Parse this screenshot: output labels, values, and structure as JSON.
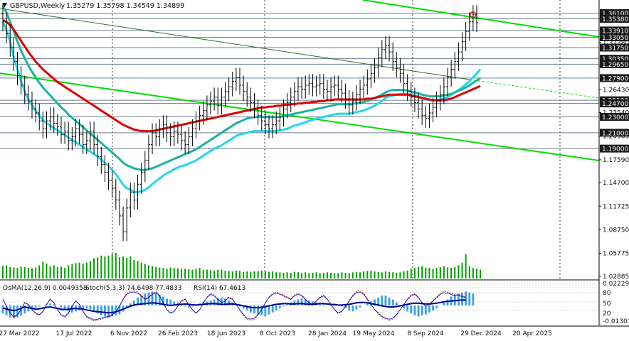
{
  "header": {
    "symbol": "GBPUSD,Weekly",
    "ohlc": "1.35279 1.35798 1.34549 1.34899"
  },
  "indicators_label": {
    "osma": "OsMA(12,26,9) 0.0049358",
    "stoch": "Stoch(5,3,3) 74.6498 77.4833",
    "rsi": "RSI(14) 67.4613"
  },
  "colors": {
    "price_bar": "#000000",
    "ema_red": "#e00000",
    "ema_teal": "#1ab3a0",
    "ema_cyan": "#22d8e8",
    "channel_green": "#00dd00",
    "trend_dark": "#2e6b2e",
    "volume": "#00a000",
    "osma_hist": "#3aa0e0",
    "osc_blue": "#0000cc",
    "osc_red": "#c00000",
    "tag_dark": "#1a1a1a"
  },
  "chart_data": {
    "type": "candlestick",
    "timeframe": "Weekly",
    "ylim": [
      1.026,
      1.374
    ],
    "x_ticks": [
      "27 Mar 2022",
      "17 Jul 2022",
      "6 Nov 2022",
      "26 Feb 2023",
      "18 Jun 2023",
      "8 Oct 2023",
      "28 Jan 2024",
      "19 May 2024",
      "8 Sep 2024",
      "29 Dec 2024",
      "20 Apr 2025"
    ],
    "y_ticks": [
      "1.02885",
      "1.05775",
      "1.08750",
      "1.11725",
      "1.14700",
      "1.17590",
      "1.20565",
      "1.23540",
      "1.26430",
      "1.29405",
      "1.32380",
      "1.35355"
    ],
    "level_tags": [
      "1.36100",
      "1.35380",
      "1.33910",
      "1.33050",
      "1.31750",
      "1.30350",
      "1.29650",
      "1.27900",
      "1.25100",
      "1.24700",
      "1.23000",
      "1.21000",
      "1.19000"
    ],
    "levels": [
      1.361,
      1.3538,
      1.3391,
      1.3305,
      1.3175,
      1.3035,
      1.2965,
      1.279,
      1.251,
      1.247,
      1.23,
      1.21,
      1.19
    ],
    "close": [
      1.35,
      1.335,
      1.318,
      1.3,
      1.282,
      1.27,
      1.258,
      1.25,
      1.24,
      1.235,
      1.225,
      1.215,
      1.225,
      1.23,
      1.222,
      1.218,
      1.208,
      1.212,
      1.2,
      1.205,
      1.215,
      1.208,
      1.195,
      1.2,
      1.212,
      1.195,
      1.18,
      1.17,
      1.16,
      1.15,
      1.14,
      1.125,
      1.105,
      1.085,
      1.115,
      1.135,
      1.125,
      1.145,
      1.16,
      1.175,
      1.195,
      1.21,
      1.205,
      1.215,
      1.22,
      1.21,
      1.205,
      1.212,
      1.208,
      1.2,
      1.195,
      1.205,
      1.215,
      1.225,
      1.232,
      1.238,
      1.245,
      1.25,
      1.255,
      1.245,
      1.255,
      1.262,
      1.268,
      1.275,
      1.28,
      1.27,
      1.262,
      1.255,
      1.248,
      1.24,
      1.232,
      1.225,
      1.22,
      1.215,
      1.22,
      1.225,
      1.23,
      1.24,
      1.248,
      1.255,
      1.262,
      1.268,
      1.265,
      1.27,
      1.272,
      1.268,
      1.27,
      1.272,
      1.265,
      1.262,
      1.268,
      1.27,
      1.265,
      1.26,
      1.252,
      1.245,
      1.25,
      1.258,
      1.265,
      1.27,
      1.278,
      1.285,
      1.292,
      1.305,
      1.315,
      1.32,
      1.312,
      1.3,
      1.292,
      1.285,
      1.272,
      1.262,
      1.255,
      1.248,
      1.24,
      1.232,
      1.228,
      1.235,
      1.242,
      1.25,
      1.258,
      1.268,
      1.28,
      1.29,
      1.3,
      1.312,
      1.325,
      1.338,
      1.35,
      1.359,
      1.349
    ],
    "vol_pct": [
      28,
      30,
      26,
      25,
      24,
      27,
      26,
      24,
      23,
      25,
      30,
      38,
      34,
      28,
      30,
      26,
      27,
      24,
      30,
      33,
      35,
      36,
      34,
      36,
      40,
      46,
      48,
      52,
      50,
      52,
      55,
      58,
      48,
      50,
      47,
      50,
      42,
      40,
      36,
      33,
      30,
      28,
      26,
      25,
      24,
      22,
      25,
      24,
      23,
      22,
      22,
      21,
      20,
      22,
      24,
      20,
      20,
      19,
      18,
      20,
      20,
      18,
      17,
      16,
      18,
      17,
      15,
      16,
      15,
      16,
      17,
      18,
      16,
      15,
      16,
      14,
      14,
      13,
      14,
      13,
      15,
      14,
      13,
      14,
      12,
      13,
      14,
      12,
      13,
      14,
      13,
      12,
      12,
      14,
      13,
      12,
      14,
      15,
      14,
      16,
      17,
      18,
      16,
      15,
      14,
      16,
      15,
      14,
      13,
      14,
      16,
      18,
      22,
      24,
      26,
      28,
      25,
      24,
      22,
      24,
      26,
      28,
      25,
      24,
      26,
      30,
      36,
      55,
      28,
      24,
      22,
      20
    ],
    "series": [
      {
        "values": [
          1.35,
          1.34,
          1.325,
          1.305,
          1.29,
          1.275,
          1.262,
          1.252,
          1.245,
          1.238,
          1.232,
          1.226,
          1.222,
          1.219,
          1.216,
          1.213,
          1.21,
          1.207,
          1.204,
          1.201,
          1.198,
          1.195,
          1.192,
          1.189,
          1.186,
          1.183,
          1.18,
          1.176,
          1.172,
          1.168,
          1.163,
          1.158,
          1.151,
          1.144,
          1.14,
          1.138,
          1.135,
          1.135,
          1.136,
          1.138,
          1.141,
          1.145,
          1.149,
          1.152,
          1.156,
          1.159,
          1.161,
          1.164,
          1.166,
          1.168,
          1.169,
          1.171,
          1.173,
          1.175,
          1.178,
          1.181,
          1.184,
          1.187,
          1.19,
          1.192,
          1.194,
          1.197,
          1.2,
          1.203,
          1.206,
          1.208,
          1.209,
          1.21,
          1.211,
          1.212,
          1.212,
          1.212,
          1.212,
          1.212,
          1.212,
          1.212,
          1.213,
          1.214,
          1.215,
          1.217,
          1.219,
          1.22,
          1.222,
          1.223,
          1.225,
          1.226,
          1.228,
          1.229,
          1.23,
          1.231,
          1.232,
          1.233,
          1.234,
          1.234,
          1.234,
          1.234,
          1.235,
          1.236,
          1.237,
          1.238,
          1.24,
          1.242,
          1.244,
          1.247,
          1.25,
          1.254,
          1.256,
          1.257,
          1.258,
          1.259,
          1.259,
          1.259,
          1.258,
          1.257,
          1.256,
          1.254,
          1.252,
          1.251,
          1.251,
          1.251,
          1.252,
          1.253,
          1.255,
          1.258,
          1.261,
          1.264,
          1.267,
          1.271,
          1.275,
          1.28,
          1.285,
          1.29
        ]
      },
      {
        "values": [
          1.37,
          1.362,
          1.35,
          1.338,
          1.325,
          1.314,
          1.304,
          1.295,
          1.287,
          1.28,
          1.273,
          1.267,
          1.262,
          1.257,
          1.252,
          1.247,
          1.242,
          1.238,
          1.233,
          1.229,
          1.225,
          1.221,
          1.217,
          1.213,
          1.209,
          1.205,
          1.201,
          1.197,
          1.193,
          1.189,
          1.185,
          1.181,
          1.177,
          1.172,
          1.169,
          1.167,
          1.165,
          1.164,
          1.163,
          1.163,
          1.164,
          1.165,
          1.167,
          1.169,
          1.171,
          1.173,
          1.175,
          1.177,
          1.179,
          1.181,
          1.183,
          1.185,
          1.187,
          1.189,
          1.192,
          1.195,
          1.198,
          1.201,
          1.204,
          1.207,
          1.21,
          1.213,
          1.216,
          1.219,
          1.222,
          1.224,
          1.226,
          1.228,
          1.229,
          1.23,
          1.23,
          1.23,
          1.23,
          1.23,
          1.23,
          1.23,
          1.23,
          1.231,
          1.232,
          1.233,
          1.234,
          1.235,
          1.236,
          1.237,
          1.238,
          1.239,
          1.24,
          1.241,
          1.242,
          1.243,
          1.244,
          1.245,
          1.246,
          1.246,
          1.246,
          1.246,
          1.247,
          1.247,
          1.248,
          1.249,
          1.25,
          1.252,
          1.254,
          1.256,
          1.258,
          1.261,
          1.263,
          1.264,
          1.264,
          1.264,
          1.264,
          1.263,
          1.262,
          1.261,
          1.26,
          1.258,
          1.257,
          1.256,
          1.256,
          1.256,
          1.256,
          1.257,
          1.258,
          1.259,
          1.261,
          1.263,
          1.265,
          1.267,
          1.27,
          1.273,
          1.276,
          1.279
        ]
      },
      {
        "values": [
          1.352,
          1.35,
          1.346,
          1.34,
          1.333,
          1.326,
          1.319,
          1.312,
          1.306,
          1.3,
          1.295,
          1.29,
          1.286,
          1.282,
          1.278,
          1.274,
          1.271,
          1.268,
          1.265,
          1.262,
          1.259,
          1.256,
          1.253,
          1.25,
          1.247,
          1.244,
          1.241,
          1.238,
          1.235,
          1.232,
          1.229,
          1.226,
          1.223,
          1.22,
          1.218,
          1.216,
          1.214,
          1.213,
          1.212,
          1.212,
          1.212,
          1.212,
          1.213,
          1.214,
          1.215,
          1.216,
          1.217,
          1.218,
          1.219,
          1.22,
          1.221,
          1.222,
          1.223,
          1.224,
          1.225,
          1.226,
          1.227,
          1.228,
          1.229,
          1.23,
          1.231,
          1.232,
          1.233,
          1.234,
          1.235,
          1.236,
          1.237,
          1.238,
          1.239,
          1.24,
          1.241,
          1.242,
          1.242,
          1.243,
          1.243,
          1.244,
          1.244,
          1.245,
          1.245,
          1.246,
          1.246,
          1.247,
          1.247,
          1.248,
          1.248,
          1.249,
          1.249,
          1.25,
          1.25,
          1.251,
          1.251,
          1.252,
          1.252,
          1.252,
          1.252,
          1.252,
          1.252,
          1.252,
          1.252,
          1.252,
          1.253,
          1.253,
          1.254,
          1.255,
          1.256,
          1.257,
          1.258,
          1.258,
          1.258,
          1.258,
          1.258,
          1.258,
          1.257,
          1.256,
          1.255,
          1.254,
          1.253,
          1.252,
          1.251,
          1.251,
          1.251,
          1.251,
          1.252,
          1.253,
          1.255,
          1.257,
          1.259,
          1.261,
          1.263,
          1.265,
          1.267,
          1.269
        ]
      }
    ],
    "osma_hist": [
      -0.8,
      -1.0,
      -1.2,
      -1.3,
      -1.2,
      -1.0,
      -0.8,
      -0.6,
      -0.4,
      -0.2,
      -0.1,
      0.0,
      0.1,
      0.2,
      0.1,
      0.0,
      -0.2,
      -0.4,
      -0.6,
      -0.7,
      -0.6,
      -0.5,
      -0.4,
      -0.3,
      -0.4,
      -0.6,
      -0.8,
      -1.0,
      -1.1,
      -1.2,
      -1.1,
      -1.0,
      -0.9,
      -0.6,
      -0.2,
      0.2,
      0.5,
      0.8,
      1.0,
      1.2,
      1.3,
      1.4,
      1.3,
      1.1,
      0.9,
      0.7,
      0.6,
      0.4,
      0.3,
      0.1,
      -0.1,
      -0.2,
      -0.1,
      0.0,
      0.2,
      0.3,
      0.4,
      0.5,
      0.6,
      0.7,
      0.8,
      0.7,
      0.5,
      0.3,
      0.1,
      -0.1,
      -0.3,
      -0.5,
      -0.7,
      -0.8,
      -0.9,
      -1.0,
      -1.1,
      -0.9,
      -0.7,
      -0.5,
      -0.3,
      -0.1,
      0.1,
      0.3,
      0.5,
      0.6,
      0.7,
      0.6,
      0.5,
      0.4,
      0.3,
      0.2,
      0.1,
      0.0,
      0.1,
      0.2,
      0.1,
      -0.1,
      -0.3,
      -0.5,
      -0.6,
      -0.4,
      -0.2,
      0.0,
      0.2,
      0.4,
      0.6,
      0.8,
      1.0,
      1.0,
      0.8,
      0.6,
      0.3,
      0.0,
      -0.3,
      -0.6,
      -0.8,
      -1.0,
      -1.1,
      -1.0,
      -0.9,
      -0.7,
      -0.5,
      -0.3,
      0.0,
      0.3,
      0.6,
      0.9,
      1.1,
      1.2,
      1.3,
      1.4,
      1.3,
      1.2
    ],
    "stoch_main": [
      70,
      50,
      30,
      20,
      25,
      40,
      60,
      55,
      40,
      30,
      25,
      35,
      55,
      70,
      60,
      40,
      25,
      20,
      30,
      50,
      65,
      55,
      35,
      20,
      15,
      10,
      12,
      15,
      18,
      20,
      25,
      35,
      50,
      70,
      85,
      90,
      92,
      88,
      80,
      70,
      75,
      85,
      90,
      80,
      60,
      40,
      30,
      35,
      50,
      65,
      70,
      55,
      40,
      30,
      40,
      60,
      75,
      85,
      80,
      70,
      60,
      65,
      75,
      70,
      55,
      40,
      25,
      15,
      12,
      15,
      25,
      40,
      60,
      75,
      85,
      88,
      85,
      80,
      75,
      70,
      80,
      85,
      80,
      70,
      60,
      55,
      65,
      75,
      80,
      70,
      55,
      40,
      30,
      35,
      50,
      65,
      80,
      90,
      92,
      85,
      70,
      55,
      40,
      30,
      20,
      15,
      12,
      15,
      25,
      40,
      55,
      70,
      80,
      85,
      75,
      60,
      50,
      55,
      65,
      75,
      85,
      90,
      88,
      85,
      80,
      82,
      78,
      75
    ],
    "rsi": [
      45,
      42,
      40,
      38,
      40,
      44,
      48,
      46,
      44,
      42,
      43,
      45,
      47,
      48,
      46,
      44,
      42,
      41,
      42,
      43,
      44,
      43,
      42,
      40,
      38,
      36,
      35,
      34,
      33,
      32,
      33,
      35,
      38,
      42,
      46,
      50,
      53,
      55,
      56,
      57,
      58,
      59,
      58,
      57,
      55,
      53,
      52,
      53,
      54,
      55,
      56,
      55,
      54,
      53,
      54,
      55,
      56,
      57,
      57,
      56,
      55,
      55,
      56,
      56,
      55,
      53,
      51,
      49,
      47,
      46,
      46,
      47,
      49,
      51,
      53,
      55,
      56,
      57,
      57,
      56,
      56,
      57,
      57,
      56,
      55,
      55,
      56,
      57,
      57,
      56,
      55,
      54,
      53,
      53,
      54,
      55,
      57,
      59,
      60,
      60,
      59,
      57,
      55,
      53,
      51,
      49,
      48,
      48,
      49,
      51,
      53,
      55,
      57,
      58,
      58,
      57,
      56,
      56,
      57,
      58,
      60,
      62,
      63,
      64,
      65,
      66,
      67,
      67
    ]
  }
}
